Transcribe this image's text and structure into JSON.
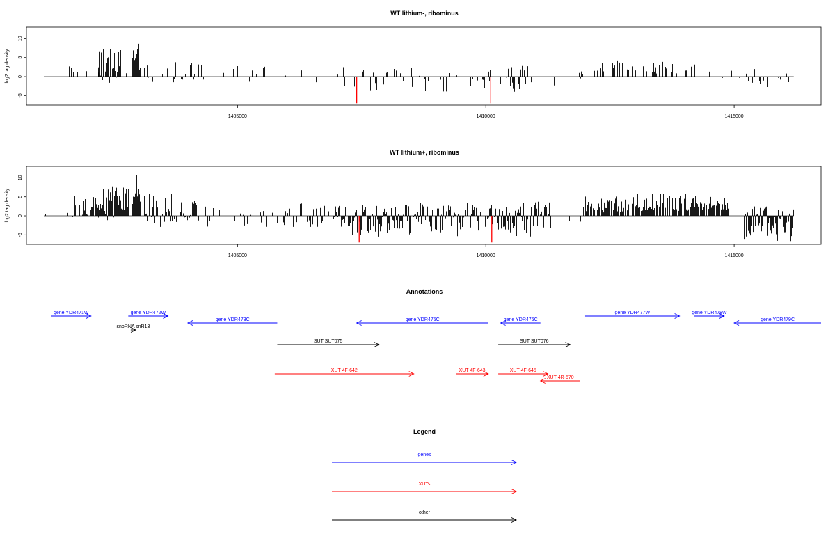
{
  "chart_data": [
    {
      "type": "bar",
      "title": "WT lithium-, ribominus",
      "ylabel": "log2 tag density",
      "xlim": [
        1400750,
        1416750
      ],
      "ylim": [
        -7.5,
        13
      ],
      "xticks": [
        1405000,
        1410000,
        1415000
      ],
      "yticks": [
        -5,
        0,
        5,
        10
      ],
      "x_start": 1401100,
      "x_end": 1416200,
      "highlight_color": "#ff0000",
      "highlights": [
        {
          "x": 1407400,
          "value": -7
        },
        {
          "x": 1410100,
          "value": -7
        }
      ],
      "clusters": [
        {
          "from": 1401600,
          "to": 1401800,
          "max": 4.5,
          "min": 0,
          "density": 0.3
        },
        {
          "from": 1401900,
          "to": 1402200,
          "max": 3,
          "min": 0,
          "density": 0.15
        },
        {
          "from": 1402200,
          "to": 1402650,
          "max": 8,
          "min": -2.5,
          "density": 0.9
        },
        {
          "from": 1402650,
          "to": 1402800,
          "max": 2,
          "min": -1,
          "density": 0.2
        },
        {
          "from": 1402880,
          "to": 1403050,
          "max": 11.5,
          "min": 0,
          "density": 1.0
        },
        {
          "from": 1403100,
          "to": 1404600,
          "max": 4,
          "min": -1.5,
          "density": 0.3
        },
        {
          "from": 1404600,
          "to": 1405900,
          "max": 3,
          "min": -3,
          "density": 0.12
        },
        {
          "from": 1405900,
          "to": 1407200,
          "max": 3,
          "min": -2.5,
          "density": 0.1
        },
        {
          "from": 1407300,
          "to": 1408500,
          "max": 3,
          "min": -4,
          "density": 0.3
        },
        {
          "from": 1408500,
          "to": 1409700,
          "max": 2.5,
          "min": -4,
          "density": 0.22
        },
        {
          "from": 1409700,
          "to": 1410400,
          "max": 2,
          "min": -3.5,
          "density": 0.25
        },
        {
          "from": 1410400,
          "to": 1411100,
          "max": 3,
          "min": -4,
          "density": 0.45
        },
        {
          "from": 1411100,
          "to": 1412200,
          "max": 3,
          "min": -2.5,
          "density": 0.1
        },
        {
          "from": 1412200,
          "to": 1414300,
          "max": 5.5,
          "min": 0,
          "density": 0.3
        },
        {
          "from": 1414300,
          "to": 1415500,
          "max": 2,
          "min": -2,
          "density": 0.1
        },
        {
          "from": 1415500,
          "to": 1416100,
          "max": 1.5,
          "min": -4,
          "density": 0.25
        }
      ]
    },
    {
      "type": "bar",
      "title": "WT lithium+, ribominus",
      "ylabel": "log2 tag density",
      "xlim": [
        1400750,
        1416750
      ],
      "ylim": [
        -7.5,
        13
      ],
      "xticks": [
        1405000,
        1410000,
        1415000
      ],
      "yticks": [
        -5,
        0,
        5,
        10
      ],
      "x_start": 1401100,
      "x_end": 1416200,
      "highlight_color": "#ff0000",
      "highlights": [
        {
          "x": 1407450,
          "value": -7
        },
        {
          "x": 1410120,
          "value": -7
        }
      ],
      "clusters": [
        {
          "from": 1401100,
          "to": 1401600,
          "max": 1.5,
          "min": 0,
          "density": 0.08
        },
        {
          "from": 1401600,
          "to": 1402200,
          "max": 6,
          "min": -1.5,
          "density": 0.6
        },
        {
          "from": 1402200,
          "to": 1402800,
          "max": 8.5,
          "min": -1.5,
          "density": 0.95
        },
        {
          "from": 1402880,
          "to": 1403050,
          "max": 12,
          "min": 0,
          "density": 1.0
        },
        {
          "from": 1403100,
          "to": 1403700,
          "max": 6,
          "min": -3,
          "density": 0.7
        },
        {
          "from": 1403700,
          "to": 1404300,
          "max": 4.5,
          "min": -2,
          "density": 0.7
        },
        {
          "from": 1404300,
          "to": 1405800,
          "max": 2.5,
          "min": -3,
          "density": 0.2
        },
        {
          "from": 1405900,
          "to": 1407300,
          "max": 3.5,
          "min": -3,
          "density": 0.55
        },
        {
          "from": 1407300,
          "to": 1409700,
          "max": 3.5,
          "min": -5.5,
          "density": 0.9
        },
        {
          "from": 1409700,
          "to": 1410300,
          "max": 3,
          "min": -4,
          "density": 0.5
        },
        {
          "from": 1410300,
          "to": 1411300,
          "max": 4,
          "min": -6,
          "density": 0.9
        },
        {
          "from": 1411300,
          "to": 1412000,
          "max": 3,
          "min": -2,
          "density": 0.2
        },
        {
          "from": 1412000,
          "to": 1414900,
          "max": 6.5,
          "min": 0,
          "density": 0.8
        },
        {
          "from": 1414900,
          "to": 1415200,
          "max": 1.5,
          "min": -1,
          "density": 0.15
        },
        {
          "from": 1415200,
          "to": 1416200,
          "max": 2.5,
          "min": -7,
          "density": 1.0
        }
      ]
    },
    {
      "type": "annotation-track",
      "title": "Annotations",
      "xlim": [
        1400750,
        1416750
      ],
      "colors": {
        "gene": "#0000ff",
        "xut": "#ff0000",
        "other": "#000000"
      },
      "features": [
        {
          "label": "gene YDR471W",
          "kind": "gene",
          "start": 1401250,
          "end": 1402050,
          "strand": "+",
          "row": 0
        },
        {
          "label": "gene YDR472W",
          "kind": "gene",
          "start": 1402800,
          "end": 1403600,
          "strand": "+",
          "row": 0
        },
        {
          "label": "snoRNA snR13",
          "kind": "other",
          "start": 1402850,
          "end": 1402950,
          "strand": "+",
          "row": 2
        },
        {
          "label": "gene YDR473C",
          "kind": "gene",
          "start": 1404000,
          "end": 1405800,
          "strand": "-",
          "row": 1
        },
        {
          "label": "gene YDR475C",
          "kind": "gene",
          "start": 1407400,
          "end": 1410050,
          "strand": "-",
          "row": 1
        },
        {
          "label": "gene YDR476C",
          "kind": "gene",
          "start": 1410300,
          "end": 1411100,
          "strand": "-",
          "row": 1
        },
        {
          "label": "gene YDR477W",
          "kind": "gene",
          "start": 1412000,
          "end": 1413900,
          "strand": "+",
          "row": 0
        },
        {
          "label": "gene YDR478W",
          "kind": "gene",
          "start": 1414200,
          "end": 1414800,
          "strand": "+",
          "row": 0
        },
        {
          "label": "gene YDR479C",
          "kind": "gene",
          "start": 1415000,
          "end": 1416750,
          "strand": "-",
          "row": 1
        },
        {
          "label": "SUT SUT075",
          "kind": "other",
          "start": 1405800,
          "end": 1407850,
          "strand": "+",
          "row": 3
        },
        {
          "label": "SUT SUT076",
          "kind": "other",
          "start": 1410250,
          "end": 1411700,
          "strand": "+",
          "row": 3
        },
        {
          "label": "XUT 4F-642",
          "kind": "xut",
          "start": 1405750,
          "end": 1408550,
          "strand": "+",
          "row": 4
        },
        {
          "label": "XUT 4F-643",
          "kind": "xut",
          "start": 1409400,
          "end": 1410050,
          "strand": "+",
          "row": 4
        },
        {
          "label": "XUT 4F-645",
          "kind": "xut",
          "start": 1410250,
          "end": 1411250,
          "strand": "+",
          "row": 4
        },
        {
          "label": "XUT 4R-570",
          "kind": "xut",
          "start": 1411100,
          "end": 1411900,
          "strand": "-",
          "row": 5
        }
      ]
    },
    {
      "type": "legend",
      "title": "Legend",
      "entries": [
        {
          "label": "genes",
          "color": "#0000ff"
        },
        {
          "label": "XUTs",
          "color": "#ff0000"
        },
        {
          "label": "other",
          "color": "#000000"
        }
      ]
    }
  ]
}
